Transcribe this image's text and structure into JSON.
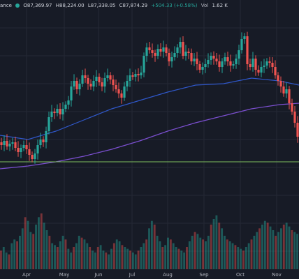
{
  "legend": {
    "source": "ance",
    "open": "O87,369.97",
    "high": "H88,224.00",
    "low": "L87,338.05",
    "close": "C87,874.29",
    "change": "+504.33 (+0.58%)",
    "volume": "1.62 K",
    "dot_color": "#26a69a"
  },
  "colors": {
    "background": "#171b26",
    "grid": "#242835",
    "up": "#26a69a",
    "down": "#ef5350",
    "ma_blue": "#2f57c9",
    "ma_purple": "#7b4fd0",
    "level_line": "#7fbf5f",
    "text": "#b2b5be"
  },
  "chart_data": {
    "type": "candlestick",
    "title": "",
    "xlabel": "",
    "ylabel": "",
    "x_ticks": [
      {
        "label": "Apr",
        "x": "Apr"
      },
      {
        "label": "May",
        "x": "May"
      },
      {
        "label": "Jun",
        "x": "Jun"
      },
      {
        "label": "Jul",
        "x": "Jul"
      },
      {
        "label": "Aug",
        "x": "Aug"
      },
      {
        "label": "Sep",
        "x": "Sep"
      },
      {
        "label": "Oct",
        "x": "Oct"
      },
      {
        "label": "Nov",
        "x": "Nov"
      }
    ],
    "ylim": [
      60000,
      130000
    ],
    "horizontal_level": 77000,
    "grid": true,
    "series_close": [
      [
        0,
        84000
      ],
      [
        4,
        83000
      ],
      [
        8,
        84500
      ],
      [
        12,
        82500
      ],
      [
        16,
        83500
      ],
      [
        20,
        84000
      ],
      [
        24,
        82000
      ],
      [
        28,
        80500
      ],
      [
        32,
        82000
      ],
      [
        36,
        83000
      ],
      [
        40,
        81500
      ],
      [
        44,
        79500
      ],
      [
        48,
        78000
      ],
      [
        52,
        80000
      ],
      [
        56,
        83000
      ],
      [
        60,
        85000
      ],
      [
        64,
        84000
      ],
      [
        68,
        88000
      ],
      [
        72,
        93000
      ],
      [
        76,
        95000
      ],
      [
        80,
        94500
      ],
      [
        84,
        96000
      ],
      [
        88,
        94000
      ],
      [
        92,
        96000
      ],
      [
        96,
        97500
      ],
      [
        100,
        99000
      ],
      [
        104,
        104000
      ],
      [
        108,
        106000
      ],
      [
        112,
        103000
      ],
      [
        116,
        105000
      ],
      [
        120,
        108000
      ],
      [
        124,
        107000
      ],
      [
        128,
        105000
      ],
      [
        132,
        104000
      ],
      [
        136,
        106000
      ],
      [
        140,
        107500
      ],
      [
        144,
        105500
      ],
      [
        148,
        104000
      ],
      [
        152,
        107000
      ],
      [
        156,
        108000
      ],
      [
        160,
        106500
      ],
      [
        164,
        104500
      ],
      [
        168,
        103000
      ],
      [
        172,
        101500
      ],
      [
        176,
        100000
      ],
      [
        180,
        104000
      ],
      [
        184,
        106000
      ],
      [
        188,
        108000
      ],
      [
        192,
        107500
      ],
      [
        196,
        108500
      ],
      [
        200,
        108000
      ],
      [
        204,
        109000
      ],
      [
        208,
        115000
      ],
      [
        212,
        118000
      ],
      [
        216,
        117000
      ],
      [
        220,
        116000
      ],
      [
        224,
        115000
      ],
      [
        228,
        117500
      ],
      [
        232,
        116500
      ],
      [
        236,
        118000
      ],
      [
        240,
        116000
      ],
      [
        244,
        113000
      ],
      [
        248,
        114500
      ],
      [
        252,
        116000
      ],
      [
        256,
        118000
      ],
      [
        260,
        120000
      ],
      [
        264,
        115000
      ],
      [
        268,
        116500
      ],
      [
        272,
        116000
      ],
      [
        276,
        113000
      ],
      [
        280,
        114000
      ],
      [
        284,
        112000
      ],
      [
        288,
        110000
      ],
      [
        292,
        111000
      ],
      [
        296,
        112000
      ],
      [
        300,
        113500
      ],
      [
        304,
        115000
      ],
      [
        308,
        114000
      ],
      [
        312,
        113000
      ],
      [
        316,
        111000
      ],
      [
        320,
        113000
      ],
      [
        324,
        114500
      ],
      [
        328,
        113000
      ],
      [
        332,
        111500
      ],
      [
        336,
        112000
      ],
      [
        340,
        114000
      ],
      [
        344,
        117000
      ],
      [
        348,
        121000
      ],
      [
        352,
        122000
      ],
      [
        356,
        112000
      ],
      [
        360,
        111000
      ],
      [
        364,
        114000
      ],
      [
        368,
        110000
      ],
      [
        372,
        109000
      ],
      [
        376,
        111000
      ],
      [
        380,
        111500
      ],
      [
        384,
        113000
      ],
      [
        388,
        112500
      ],
      [
        392,
        111000
      ],
      [
        396,
        108000
      ],
      [
        400,
        106000
      ],
      [
        404,
        104000
      ],
      [
        408,
        101500
      ],
      [
        412,
        103000
      ],
      [
        416,
        98000
      ],
      [
        420,
        95000
      ],
      [
        424,
        91000
      ],
      [
        428,
        86000
      ]
    ],
    "series": [
      {
        "values": [
          [
            0,
            86500
          ],
          [
            40,
            85000
          ],
          [
            80,
            88000
          ],
          [
            120,
            92000
          ],
          [
            160,
            96000
          ],
          [
            200,
            99000
          ],
          [
            240,
            102000
          ],
          [
            280,
            104500
          ],
          [
            320,
            105000
          ],
          [
            360,
            107000
          ],
          [
            400,
            106000
          ],
          [
            428,
            104500
          ]
        ]
      },
      {
        "values": [
          [
            0,
            74500
          ],
          [
            40,
            75500
          ],
          [
            80,
            77000
          ],
          [
            120,
            79000
          ],
          [
            160,
            81500
          ],
          [
            200,
            84500
          ],
          [
            240,
            88000
          ],
          [
            280,
            91000
          ],
          [
            320,
            93500
          ],
          [
            360,
            96000
          ],
          [
            400,
            97500
          ],
          [
            428,
            98000
          ]
        ]
      }
    ],
    "volume_profile": [
      10,
      12,
      9,
      8,
      14,
      16,
      15,
      18,
      22,
      28,
      26,
      20,
      19,
      24,
      28,
      30,
      25,
      21,
      18,
      14,
      13,
      12,
      15,
      18,
      16,
      11,
      9,
      12,
      14,
      18,
      17,
      16,
      14,
      12,
      10,
      9,
      12,
      13,
      10,
      9,
      8,
      11,
      14,
      16,
      15,
      13,
      12,
      11,
      10,
      9,
      8,
      10,
      12,
      14,
      16,
      22,
      26,
      24,
      18,
      15,
      12,
      13,
      17,
      16,
      14,
      12,
      11,
      10,
      9,
      12,
      15,
      18,
      20,
      19,
      17,
      16,
      15,
      18,
      24,
      27,
      29,
      25,
      22,
      18,
      16,
      15,
      14,
      13,
      12,
      11,
      10,
      12,
      14,
      16,
      18,
      20,
      22,
      24,
      26,
      25,
      23,
      21,
      18,
      20,
      22,
      24,
      25,
      23,
      21,
      20,
      19
    ]
  }
}
